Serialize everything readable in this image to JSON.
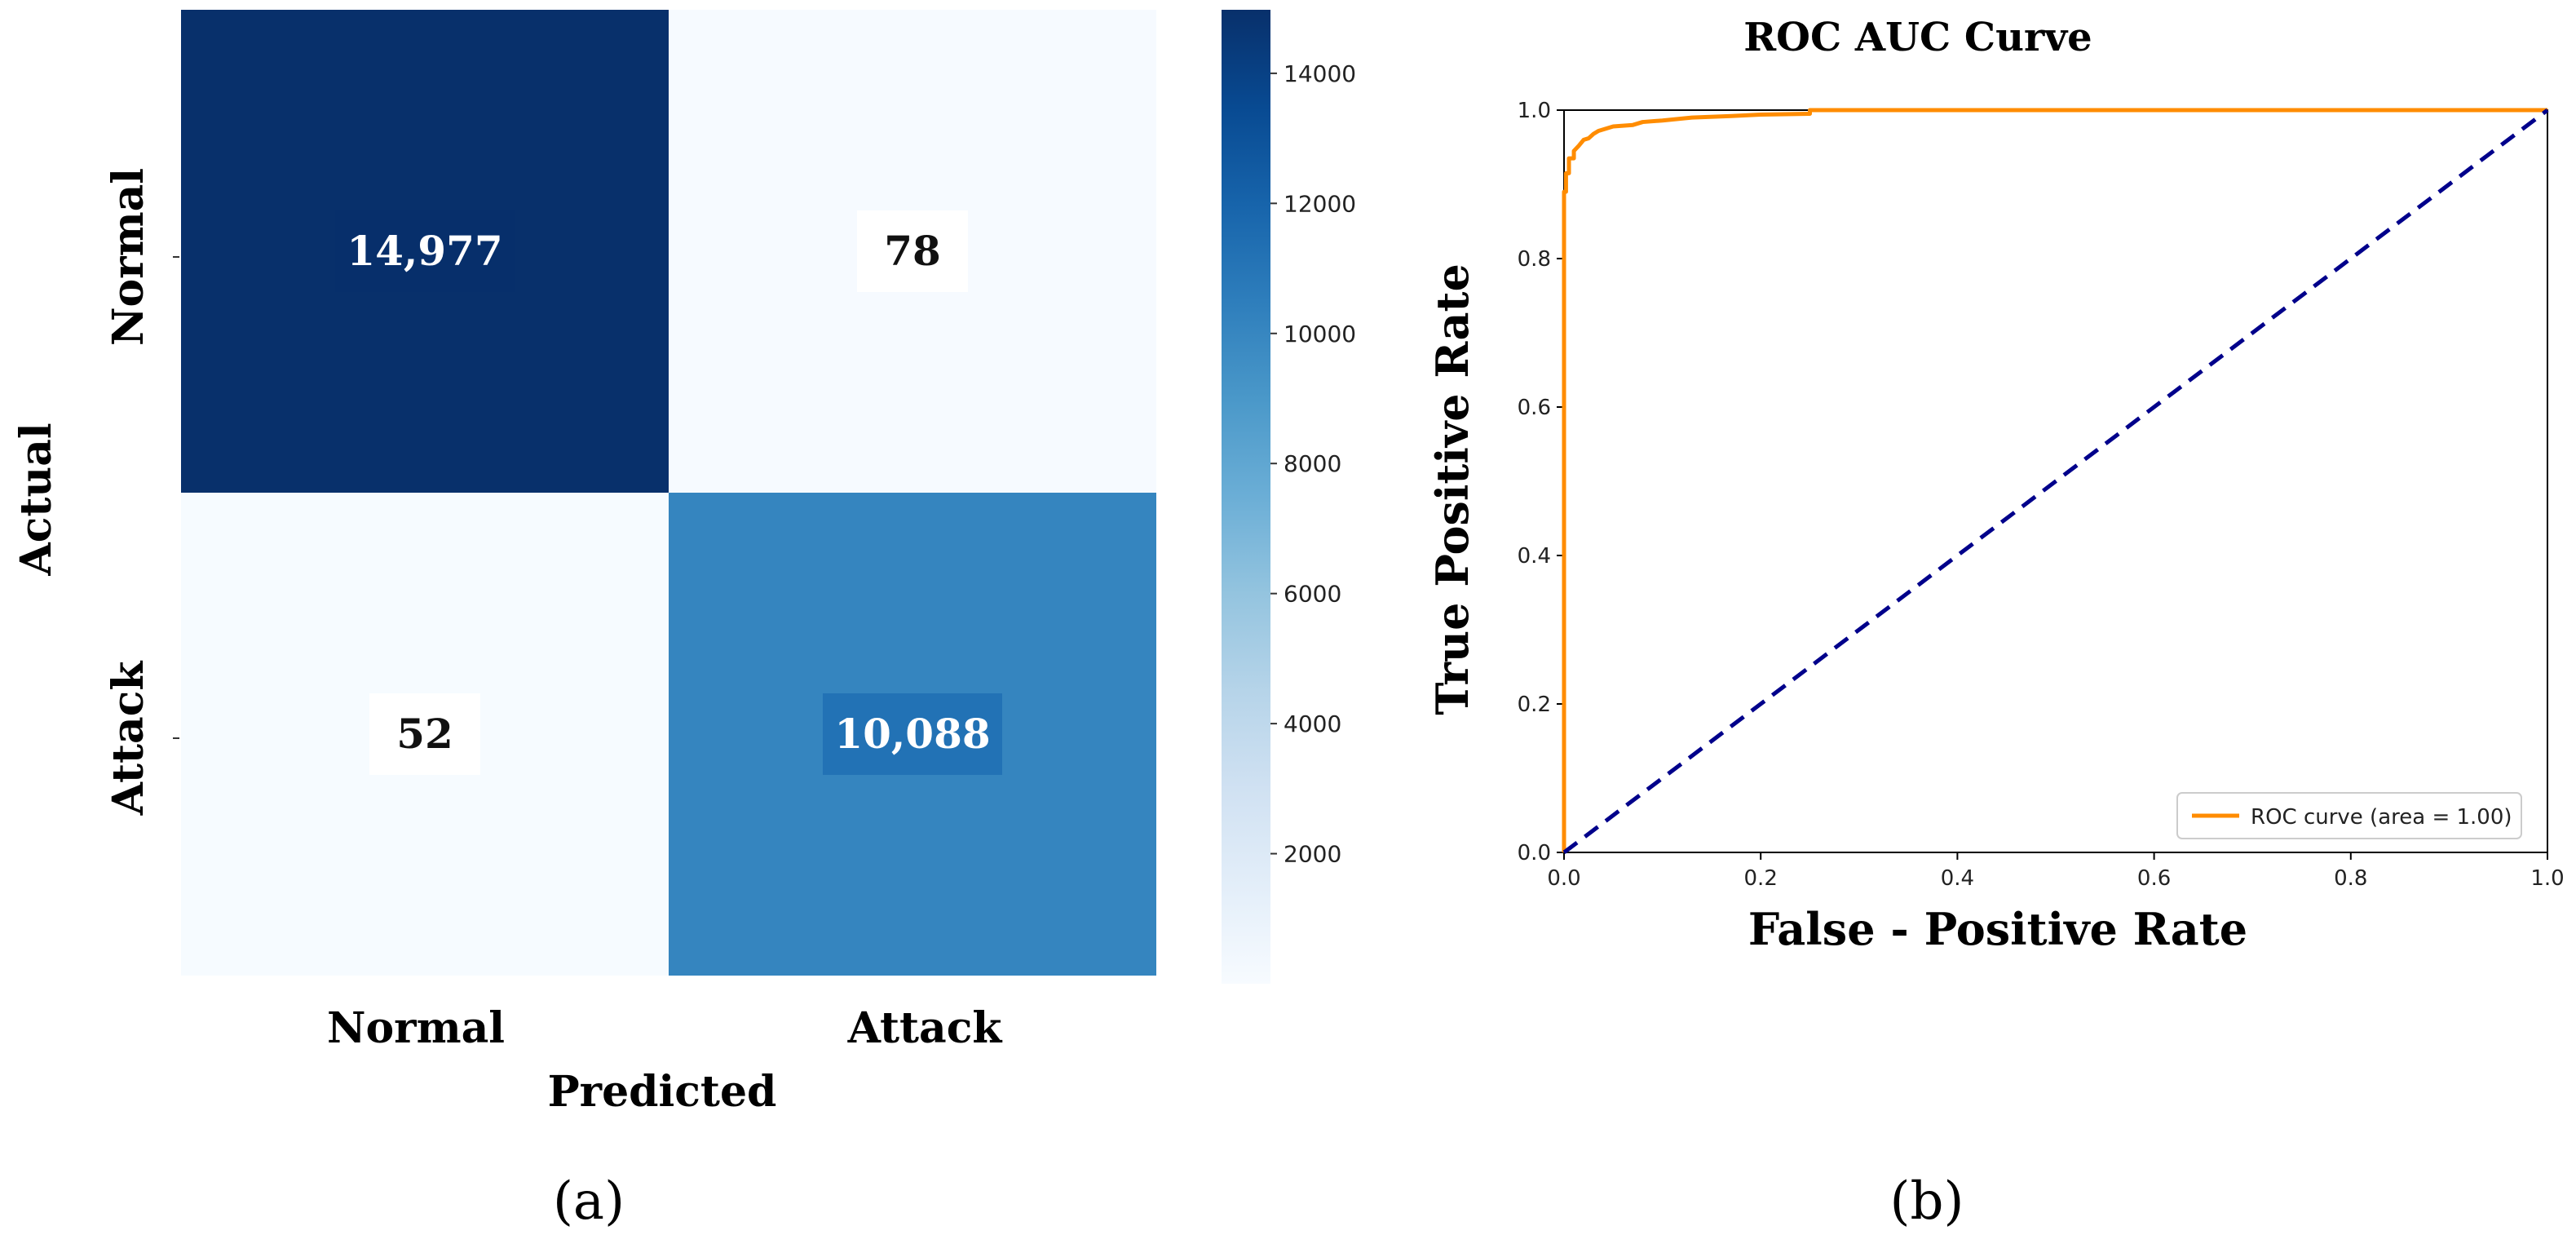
{
  "panels": {
    "a_label": "(a)",
    "b_label": "(b)"
  },
  "chart_data": [
    {
      "type": "heatmap",
      "x_categories": [
        "Normal",
        "Attack"
      ],
      "y_categories": [
        "Normal",
        "Attack"
      ],
      "values": [
        [
          14977,
          78
        ],
        [
          52,
          10088
        ]
      ],
      "value_labels": [
        [
          "14,977",
          "78"
        ],
        [
          "52",
          "10,088"
        ]
      ],
      "xlabel": "Predicted",
      "ylabel": "Actual",
      "colorbar": {
        "ticks": [
          2000,
          4000,
          6000,
          8000,
          10000,
          12000,
          14000
        ],
        "range": [
          0,
          14977
        ],
        "colormap": "Blues"
      },
      "colors": {
        "low": "#f7fbff",
        "high": "#08306b"
      }
    },
    {
      "type": "line",
      "title": "ROC AUC Curve",
      "xlabel": "False - Positive Rate",
      "ylabel": "True Positive Rate",
      "xlim": [
        0.0,
        1.0
      ],
      "ylim": [
        0.0,
        1.0
      ],
      "xticks": [
        "0.0",
        "0.2",
        "0.4",
        "0.6",
        "0.8",
        "1.0"
      ],
      "yticks": [
        "0.0",
        "0.2",
        "0.4",
        "0.6",
        "0.8",
        "1.0"
      ],
      "legend_position": "lower-right",
      "series": [
        {
          "name": "ROC curve (area = 1.00)",
          "color": "#ff8c00",
          "style": "solid",
          "x": [
            0.0,
            0.0,
            0.002,
            0.002,
            0.005,
            0.005,
            0.01,
            0.01,
            0.015,
            0.02,
            0.025,
            0.03,
            0.035,
            0.05,
            0.07,
            0.08,
            0.1,
            0.13,
            0.17,
            0.2,
            0.25,
            0.25,
            1.0
          ],
          "y": [
            0.0,
            0.89,
            0.89,
            0.915,
            0.915,
            0.935,
            0.935,
            0.945,
            0.952,
            0.96,
            0.962,
            0.968,
            0.972,
            0.978,
            0.98,
            0.984,
            0.986,
            0.99,
            0.992,
            0.994,
            0.995,
            1.0,
            1.0
          ]
        },
        {
          "name": "",
          "color": "#00008b",
          "style": "dashed",
          "x": [
            0.0,
            1.0
          ],
          "y": [
            0.0,
            1.0
          ]
        }
      ]
    }
  ]
}
